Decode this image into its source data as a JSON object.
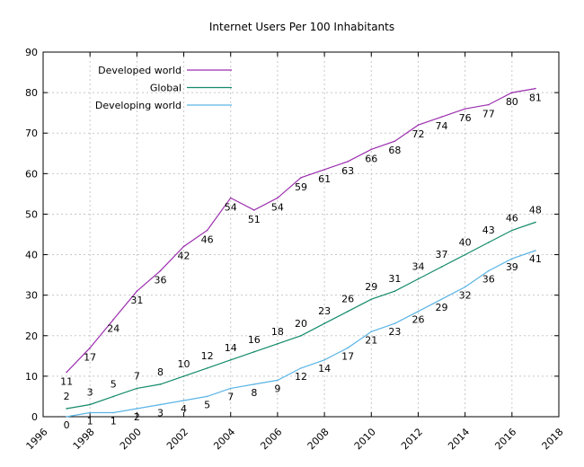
{
  "chart_data": {
    "type": "line",
    "title": "Internet Users Per 100 Inhabitants",
    "xlabel": "",
    "ylabel": "",
    "xlim": [
      1996,
      2018
    ],
    "ylim": [
      0,
      90
    ],
    "x_ticks": [
      "1996",
      "1998",
      "2000",
      "2002",
      "2004",
      "2006",
      "2008",
      "2010",
      "2012",
      "2014",
      "2016",
      "2018"
    ],
    "y_ticks": [
      "0",
      "10",
      "20",
      "30",
      "40",
      "50",
      "60",
      "70",
      "80",
      "90"
    ],
    "grid": true,
    "legend_position": "top-left",
    "x": [
      1997,
      1998,
      1999,
      2000,
      2001,
      2002,
      2003,
      2004,
      2005,
      2006,
      2007,
      2008,
      2009,
      2010,
      2011,
      2012,
      2013,
      2014,
      2015,
      2016,
      2017
    ],
    "series": [
      {
        "name": "Developed world",
        "color": "#9b2fae",
        "values": [
          11,
          17,
          24,
          31,
          36,
          42,
          46,
          54,
          51,
          54,
          59,
          61,
          63,
          66,
          68,
          72,
          74,
          76,
          77,
          80,
          81
        ],
        "labels": [
          "11",
          "17",
          "24",
          "31",
          "36",
          "42",
          "46",
          "54",
          "51",
          "54",
          "59",
          "61",
          "63",
          "66",
          "68",
          "72",
          "74",
          "76",
          "77",
          "80",
          "81"
        ]
      },
      {
        "name": "Global",
        "color": "#138a6a",
        "values": [
          2,
          3,
          5,
          7,
          8,
          10,
          12,
          14,
          16,
          18,
          20,
          23,
          26,
          29,
          31,
          34,
          37,
          40,
          43,
          46,
          48
        ],
        "labels": [
          "2",
          "3",
          "5",
          "7",
          "8",
          "10",
          "12",
          "14",
          "16",
          "18",
          "20",
          "23",
          "26",
          "29",
          "31",
          "34",
          "37",
          "40",
          "43",
          "46",
          "48"
        ]
      },
      {
        "name": "Developing world",
        "color": "#5ab4e5",
        "values": [
          0,
          1,
          1,
          2,
          3,
          4,
          5,
          7,
          8,
          9,
          12,
          14,
          17,
          21,
          23,
          26,
          29,
          32,
          36,
          39,
          41
        ],
        "labels": [
          "0",
          "1",
          "1",
          "2",
          "3",
          "4",
          "5",
          "7",
          "8",
          "9",
          "12",
          "14",
          "17",
          "21",
          "23",
          "26",
          "29",
          "32",
          "36",
          "39",
          "41"
        ]
      }
    ]
  }
}
